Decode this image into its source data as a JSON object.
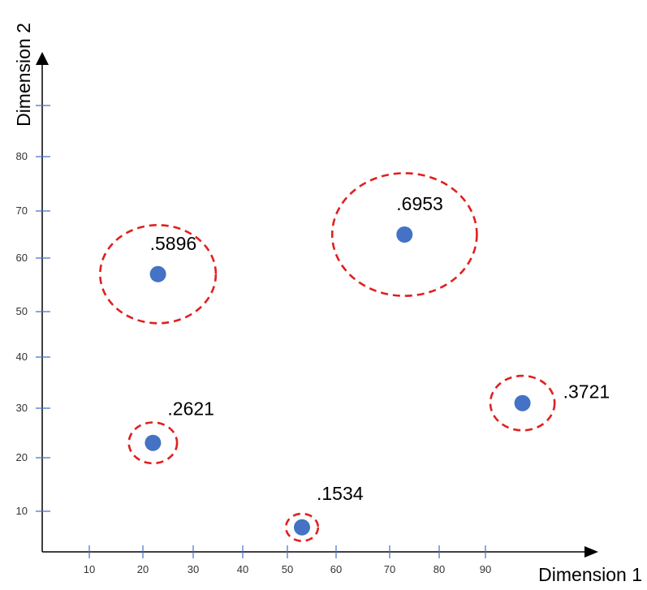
{
  "chart_data": {
    "type": "scatter",
    "title": "",
    "xlabel": "Dimension 1",
    "ylabel": "Dimension 2",
    "x_ticks": [
      "10",
      "20",
      "30",
      "40",
      "50",
      "60",
      "70",
      "80",
      "90"
    ],
    "y_ticks": [
      "10",
      "20",
      "30",
      "40",
      "50",
      "60",
      "70",
      "80"
    ],
    "grid": false,
    "legend": "none",
    "point_color": "#4472C4",
    "circle_color": "#E02020",
    "axis_color": "#000000",
    "tick_color": "#4472C4",
    "points": [
      {
        "label": ".5896",
        "x": 23,
        "y": 57,
        "radius": 10.8
      },
      {
        "label": ".6953",
        "x": 73,
        "y": 65,
        "radius": 13.5
      },
      {
        "label": ".2621",
        "x": 22,
        "y": 23,
        "radius": 4.5
      },
      {
        "label": ".1534",
        "x": 53,
        "y": 7,
        "radius": 3.0
      },
      {
        "label": ".3721",
        "x": 98,
        "y": 31,
        "radius": 6.0
      }
    ]
  }
}
